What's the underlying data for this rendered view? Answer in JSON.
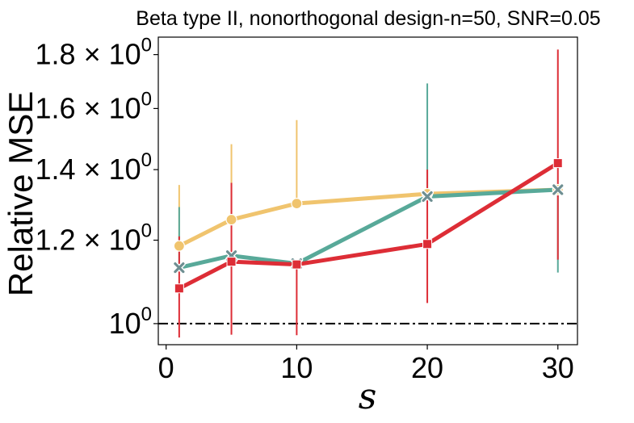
{
  "chart_data": {
    "type": "line",
    "title": "Beta type II, nonorthogonal design-n=50, SNR=0.05",
    "xlabel": "s",
    "ylabel": "Relative MSE",
    "yscale": "log",
    "xlim": [
      -0.6,
      31.5
    ],
    "ylim": [
      0.955,
      1.87
    ],
    "x_ticks": [
      0,
      10,
      20,
      30
    ],
    "x_tick_labels": [
      "0",
      "10",
      "20",
      "30"
    ],
    "y_ticks": [
      1.0,
      1.2,
      1.4,
      1.6,
      1.8
    ],
    "y_tick_labels": [
      {
        "mant": "",
        "base": "10",
        "exp": "0"
      },
      {
        "mant": "1.2 × ",
        "base": "10",
        "exp": "0"
      },
      {
        "mant": "1.4 × ",
        "base": "10",
        "exp": "0"
      },
      {
        "mant": "1.6 × ",
        "base": "10",
        "exp": "0"
      },
      {
        "mant": "1.8 × ",
        "base": "10",
        "exp": "0"
      }
    ],
    "reference_line": {
      "y": 1.0,
      "style": "dash-dot",
      "color": "#000000"
    },
    "x": [
      1,
      5,
      10,
      20,
      30
    ],
    "series": [
      {
        "name": "series-yellow",
        "color": "#f0c46e",
        "marker": "circle",
        "values": [
          1.185,
          1.255,
          1.3,
          1.328,
          1.34
        ],
        "err_low": [
          1.185,
          1.255,
          1.3,
          1.328,
          1.34
        ],
        "err_high": [
          1.354,
          1.48,
          1.56,
          1.328,
          1.34
        ]
      },
      {
        "name": "series-teal",
        "color": "#58a999",
        "marker": "x",
        "values": [
          1.13,
          1.16,
          1.14,
          1.32,
          1.34
        ],
        "err_low": [
          1.13,
          1.16,
          1.14,
          1.32,
          1.118
        ],
        "err_high": [
          1.29,
          1.16,
          1.14,
          1.69,
          1.34
        ]
      },
      {
        "name": "series-red",
        "color": "#dd2d36",
        "marker": "square",
        "values": [
          1.08,
          1.145,
          1.138,
          1.19,
          1.42
        ],
        "err_low": [
          0.97,
          0.976,
          0.975,
          1.046,
          1.15
        ],
        "err_high": [
          1.21,
          1.36,
          1.14,
          1.4,
          1.82
        ]
      }
    ]
  }
}
